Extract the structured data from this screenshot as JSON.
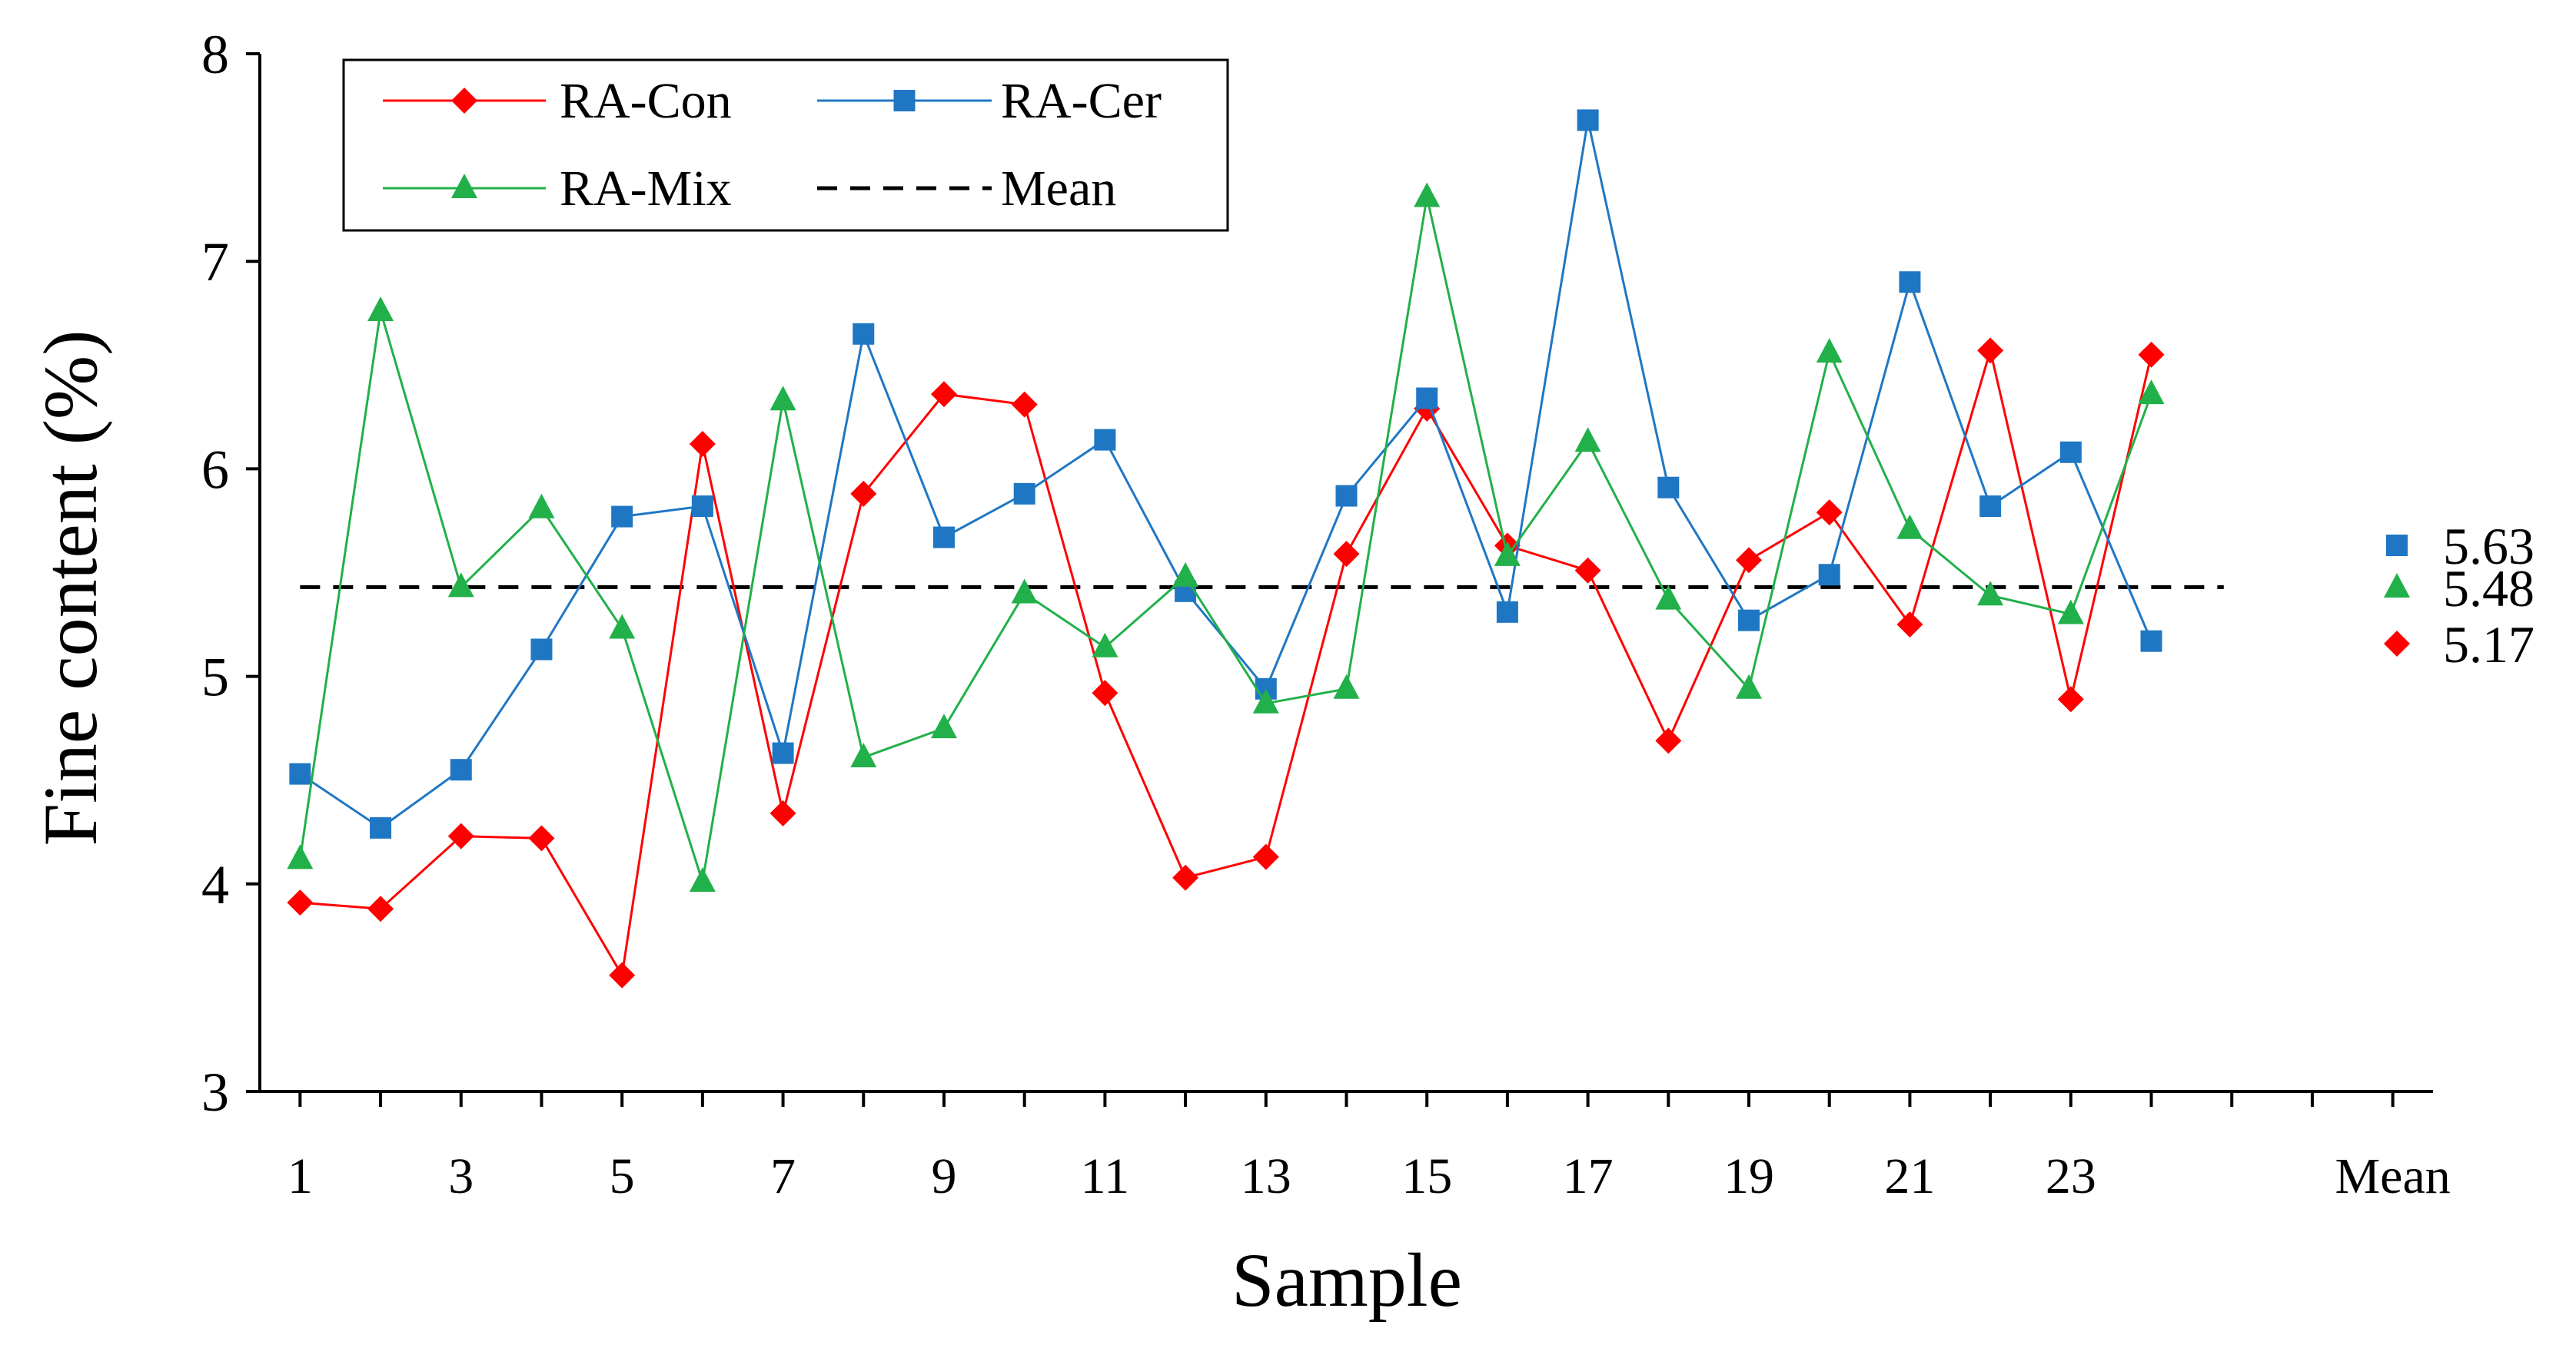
{
  "chart_data": {
    "type": "line",
    "title": "",
    "xlabel": "Sample",
    "ylabel": "Fine content (%)",
    "ylim": [
      3,
      8
    ],
    "yticks": [
      "3",
      "4",
      "5",
      "6",
      "7",
      "8"
    ],
    "xticks": [
      "1",
      "3",
      "5",
      "7",
      "9",
      "11",
      "13",
      "15",
      "17",
      "19",
      "21",
      "23",
      "Mean"
    ],
    "x": [
      1,
      2,
      3,
      4,
      5,
      6,
      7,
      8,
      9,
      10,
      11,
      12,
      13,
      14,
      15,
      16,
      17,
      18,
      19,
      20,
      21,
      22,
      23,
      24
    ],
    "series": [
      {
        "name": "RA-Con",
        "color": "#ff0000",
        "marker": "diamond",
        "values": [
          3.91,
          3.88,
          4.23,
          4.22,
          3.56,
          6.12,
          4.34,
          5.88,
          6.36,
          6.31,
          4.92,
          4.03,
          4.13,
          5.59,
          6.29,
          5.63,
          5.51,
          4.69,
          5.56,
          5.79,
          5.25,
          6.57,
          4.89,
          6.55
        ],
        "mean": 5.17,
        "mean_label": "5.17"
      },
      {
        "name": "RA-Cer",
        "color": "#1f77c4",
        "marker": "square",
        "values": [
          4.53,
          4.27,
          4.55,
          5.13,
          5.77,
          5.82,
          4.63,
          6.65,
          5.67,
          5.88,
          6.14,
          5.41,
          4.94,
          5.87,
          6.34,
          5.31,
          7.68,
          5.91,
          5.27,
          5.49,
          6.9,
          5.82,
          6.08,
          5.17
        ],
        "mean": 5.63,
        "mean_label": "5.63"
      },
      {
        "name": "RA-Mix",
        "color": "#22b04a",
        "marker": "triangle",
        "values": [
          4.12,
          6.76,
          5.43,
          5.81,
          5.23,
          4.01,
          6.33,
          4.61,
          4.75,
          5.4,
          5.14,
          5.48,
          4.87,
          4.94,
          7.31,
          5.58,
          6.13,
          5.37,
          4.94,
          6.56,
          5.71,
          5.39,
          5.3,
          6.36
        ],
        "mean": 5.48,
        "mean_label": "5.48"
      }
    ],
    "mean_line": {
      "name": "Mean",
      "value": 5.43,
      "x_range": [
        1,
        24.9
      ],
      "color": "#000000",
      "style": "dashed"
    },
    "legend": {
      "placement": "top-left",
      "entries": [
        "RA-Con",
        "RA-Cer",
        "RA-Mix",
        "Mean"
      ]
    },
    "grid": false
  }
}
